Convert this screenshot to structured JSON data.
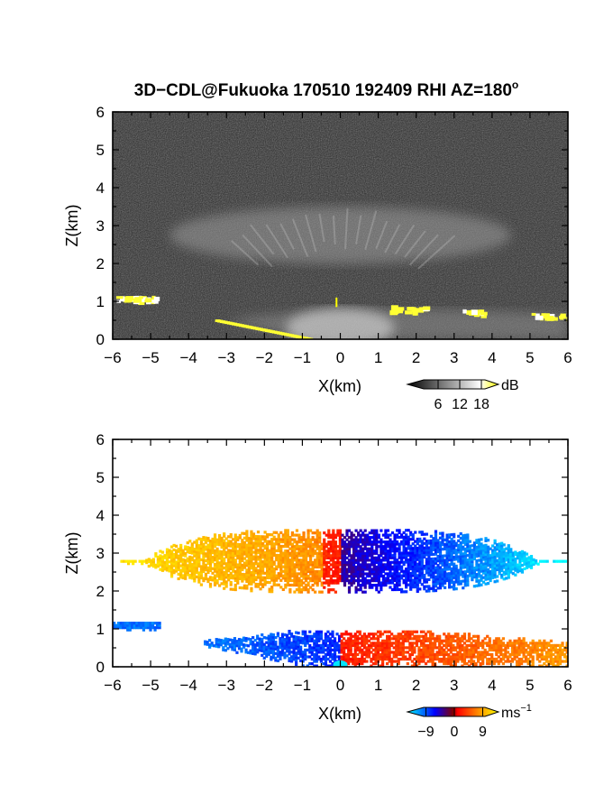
{
  "chart_data": [
    {
      "type": "heatmap",
      "panel": "reflectivity",
      "title": "3D−CDL@Fukuoka 170510 192409 RHI AZ=180",
      "title_superscript": "o",
      "xlabel": "X(km)",
      "ylabel": "Z(km)",
      "xlim": [
        -6,
        6
      ],
      "ylim": [
        0,
        6
      ],
      "xticks": [
        "−6",
        "−5",
        "−4",
        "−3",
        "−2",
        "−1",
        "0",
        "1",
        "2",
        "3",
        "4",
        "5",
        "6"
      ],
      "yticks": [
        "0",
        "1",
        "2",
        "3",
        "4",
        "5",
        "6"
      ],
      "grid": false,
      "colorbar": {
        "unit": "dB",
        "ticks": [
          "6",
          "12",
          "18"
        ],
        "tick_values": [
          6,
          12,
          18
        ],
        "range": [
          0,
          21
        ],
        "colors": [
          "#000000",
          "#ffffff",
          "#ffff00"
        ]
      },
      "features": [
        {
          "name": "high-cloud-layer",
          "z_range": [
            2.0,
            3.5
          ],
          "x_range": [
            -4.5,
            4.5
          ]
        },
        {
          "name": "low-cloud-left",
          "z_range": [
            1.0,
            1.2
          ],
          "x_range": [
            -6,
            -4.8
          ]
        },
        {
          "name": "low-cloud-right",
          "z_range": [
            0.5,
            0.9
          ],
          "x_range": [
            1.3,
            6
          ]
        },
        {
          "name": "ground-clutter",
          "z_range": [
            0,
            0.8
          ],
          "x_range": [
            -3,
            6
          ]
        }
      ]
    },
    {
      "type": "heatmap",
      "panel": "doppler-velocity",
      "title": "",
      "xlabel": "X(km)",
      "ylabel": "Z(km)",
      "xlim": [
        -6,
        6
      ],
      "ylim": [
        0,
        6
      ],
      "xticks": [
        "−6",
        "−5",
        "−4",
        "−3",
        "−2",
        "−1",
        "0",
        "1",
        "2",
        "3",
        "4",
        "5",
        "6"
      ],
      "yticks": [
        "0",
        "1",
        "2",
        "3",
        "4",
        "5",
        "6"
      ],
      "grid": false,
      "colorbar": {
        "unit": "ms",
        "unit_superscript": "−1",
        "ticks": [
          "−9",
          "0",
          "9"
        ],
        "tick_values": [
          -9,
          0,
          9
        ],
        "range": [
          -12,
          12
        ],
        "colors": [
          "#00ffff",
          "#0000ff",
          "#ff0000",
          "#ffff00"
        ]
      },
      "features": [
        {
          "name": "upper-layer",
          "z_range": [
            2.0,
            3.6
          ],
          "x_range": [
            -5.8,
            6
          ],
          "velocity_left": 9,
          "velocity_right": -7
        },
        {
          "name": "lower-layer",
          "z_range": [
            0,
            1.1
          ],
          "x_range": [
            -6,
            6
          ],
          "velocity_left": -7,
          "velocity_right": 6
        },
        {
          "name": "left-low-cloud",
          "z_range": [
            0.9,
            1.2
          ],
          "x_range": [
            -6,
            -4.8
          ],
          "velocity": -10
        }
      ]
    }
  ]
}
